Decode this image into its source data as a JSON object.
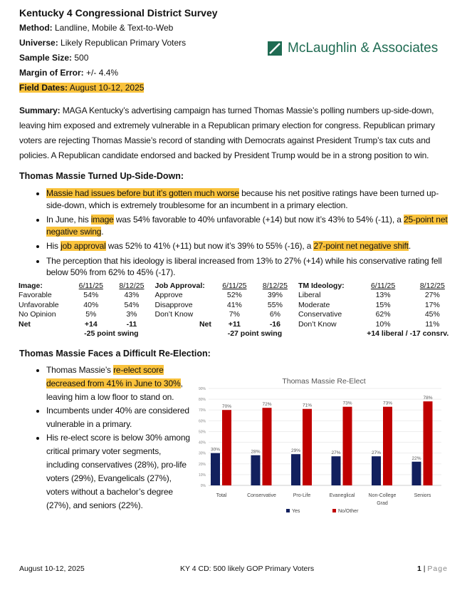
{
  "header": {
    "title": "Kentucky 4 Congressional District Survey",
    "method_label": "Method:",
    "method": "Landline, Mobile & Text-to-Web",
    "universe_label": "Universe:",
    "universe": "Likely Republican Primary Voters",
    "sample_label": "Sample Size:",
    "sample": "500",
    "moe_label": "Margin of Error:",
    "moe": "+/- 4.4%",
    "field_label": "Field Dates:",
    "field": "August 10-12, 2025",
    "logo_text": "McLaughlin & Associates"
  },
  "summary": {
    "label": "Summary:",
    "text": "MAGA Kentucky’s advertising campaign has turned Thomas Massie’s polling numbers up-side-down, leaving him exposed and extremely vulnerable in a Republican primary election for congress. Republican primary voters are rejecting Thomas Massie’s record of standing with Democrats against President Trump’s tax cuts and policies. A Republican candidate endorsed and backed by President Trump would be in a strong position to win."
  },
  "section1": {
    "heading": "Thomas Massie Turned Up-Side-Down:",
    "b1": {
      "hl": "Massie had issues before but it’s gotten much worse",
      "rest": " because his net positive ratings have been turned up-side-down, which is extremely troublesome for an incumbent in a primary election."
    },
    "b2": {
      "a": "In June, his ",
      "hl1": "image",
      "b": " was 54% favorable to 40% unfavorable (+14) but now it’s 43% to 54% (-11), a ",
      "hl2": "25-point net negative swing",
      "c": "."
    },
    "b3": {
      "a": "His ",
      "hl1": "job approval",
      "b": " was 52% to 41% (+11) but now it’s 39% to 55% (-16), a ",
      "hl2": "27-point net negative shift",
      "c": "."
    },
    "b4": "The perception that his ideology is liberal increased from 13% to 27% (+14) while his conservative rating fell below 50% from 62% to 45% (-17)."
  },
  "tables": [
    {
      "title": "Image:",
      "cols": [
        "6/11/25",
        "8/12/25"
      ],
      "rows": [
        [
          "Favorable",
          "54%",
          "43%"
        ],
        [
          "Unfavorable",
          "40%",
          "54%"
        ],
        [
          "No Opinion",
          "5%",
          "3%"
        ],
        [
          "Net",
          "+14",
          "-11"
        ]
      ],
      "note": "-25 point swing"
    },
    {
      "title": "Job Approval:",
      "cols": [
        "6/11/25",
        "8/12/25"
      ],
      "rows": [
        [
          "Approve",
          "52%",
          "39%"
        ],
        [
          "Disapprove",
          "41%",
          "55%"
        ],
        [
          "Don’t Know",
          "7%",
          "6%"
        ],
        [
          "Net",
          "+11",
          "-16"
        ]
      ],
      "note": "-27 point swing"
    },
    {
      "title": "TM Ideology:",
      "cols": [
        "6/11/25",
        "8/12/25"
      ],
      "rows": [
        [
          "Liberal",
          "13%",
          "27%"
        ],
        [
          "Moderate",
          "15%",
          "17%"
        ],
        [
          "Conservative",
          "62%",
          "45%"
        ],
        [
          "Don’t Know",
          "10%",
          "11%"
        ]
      ],
      "note": "+14 liberal / -17 consrv."
    }
  ],
  "section2": {
    "heading": "Thomas Massie Faces a Difficult Re-Election:",
    "b1": {
      "a": "Thomas Massie’s ",
      "hl": "re-elect score decreased from 41% in June to 30%",
      "rest": ", leaving him a low floor to stand on."
    },
    "b2": "Incumbents under 40% are considered vulnerable in a primary.",
    "b3": "His re-elect score is below 30% among critical primary voter segments, including conservatives (28%), pro-life voters (29%), Evangelicals (27%), voters without a bachelor’s degree (27%), and seniors (22%)."
  },
  "chart_data": {
    "type": "bar",
    "title": "Thomas Massie Re-Elect",
    "categories": [
      "Total",
      "Conservative",
      "Pro-Life",
      "Evaneglical",
      "Non-College Grad",
      "Seniors"
    ],
    "series": [
      {
        "name": "Yes",
        "color": "#12205e",
        "values": [
          30,
          28,
          29,
          27,
          27,
          22
        ]
      },
      {
        "name": "No/Other",
        "color": "#c00000",
        "values": [
          70,
          72,
          71,
          73,
          73,
          78
        ]
      }
    ],
    "ylim": [
      0,
      90
    ],
    "yticks": [
      "0%",
      "10%",
      "20%",
      "30%",
      "40%",
      "50%",
      "60%",
      "70%",
      "80%",
      "90%"
    ],
    "legend": "bottom"
  },
  "footer": {
    "left": "August 10-12, 2025",
    "center": "KY 4 CD: 500 likely GOP Primary Voters",
    "page_num": "1",
    "page_sep": " | ",
    "page_word": "Page"
  },
  "colors": {
    "highlight": "#f9c23c",
    "logo": "#1f6b52"
  }
}
